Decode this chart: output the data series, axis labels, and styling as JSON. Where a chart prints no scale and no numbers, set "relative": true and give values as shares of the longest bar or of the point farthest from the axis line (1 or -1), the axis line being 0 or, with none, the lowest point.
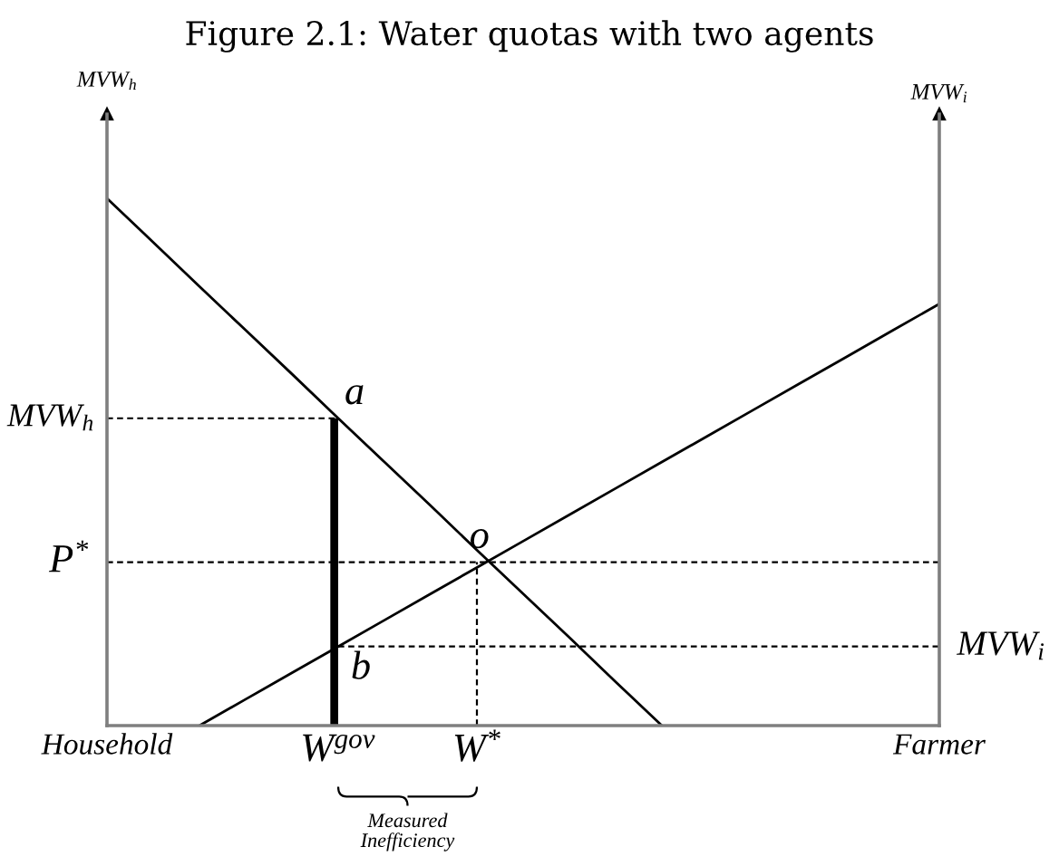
{
  "chart_data": {
    "type": "line",
    "title": "Figure 2.1: Water quotas with two agents",
    "ylabel": "MVW$_{h}$",
    "y2label": "MVW$_{i}$",
    "relative": true,
    "categories": [
      "Household",
      null,
      null,
      null,
      null,
      "W$^{gov}$",
      null,
      null,
      "W$^{*}$",
      null,
      null,
      null,
      null,
      null,
      null,
      null,
      null,
      null,
      "Farmer"
    ],
    "series": [
      {
        "color": "#000000",
        "line_style": "solid",
        "values": [
          1,
          0.917,
          0.833,
          0.75,
          0.667,
          0.583,
          0.5,
          0.417,
          0.333,
          0.25,
          0.167,
          0.083,
          0,
          null,
          null,
          null,
          null,
          null,
          null
        ]
      },
      {
        "color": "#000000",
        "line_style": "solid",
        "values": [
          null,
          null,
          0,
          0.05,
          0.1,
          0.15,
          0.2,
          0.25,
          0.3,
          0.35,
          0.4,
          0.45,
          0.5,
          0.55,
          0.6,
          0.65,
          0.7,
          0.75,
          0.8
        ]
      },
      {
        "name": "MVW$_{h}$",
        "color": "#000000",
        "line_style": "dashed",
        "values": [
          0.583,
          0.583,
          0.583,
          0.583,
          0.583,
          0.583,
          null,
          null,
          null,
          null,
          null,
          null,
          null,
          null,
          null,
          null,
          null,
          null,
          null
        ]
      },
      {
        "name": "MVW$_{i}$",
        "color": "#000000",
        "line_style": "dashed",
        "values": [
          null,
          null,
          null,
          null,
          null,
          0.15,
          0.15,
          0.15,
          0.15,
          0.15,
          0.15,
          0.15,
          0.15,
          0.15,
          0.15,
          0.15,
          0.15,
          0.15,
          0.15
        ]
      },
      {
        "color": "#000000",
        "line_style": "dashed",
        "x": [
          "W$^{*}$",
          "W$^{*}$"
        ],
        "values": [
          0,
          0.31
        ]
      },
      {
        "type": "bar",
        "color": "#000000",
        "values": [
          null,
          null,
          null,
          null,
          null,
          0.583,
          null,
          null,
          null,
          null,
          null,
          null,
          null,
          null,
          null,
          null,
          null,
          null,
          null
        ]
      }
    ],
    "ref_lines": [
      {
        "axis": "y",
        "value": 0.31,
        "label": "P$^{*}$",
        "color": "#000000",
        "line_style": "dashed"
      }
    ],
    "annotations": [
      {
        "text": "a",
        "x": "W$^{gov}$",
        "y": 0.583
      },
      {
        "text": "o",
        "x": "W$^{*}$",
        "y": 0.31
      },
      {
        "text": "b",
        "x": "W$^{gov}$",
        "y": 0.15
      },
      "Measured\nInefficiency"
    ]
  }
}
